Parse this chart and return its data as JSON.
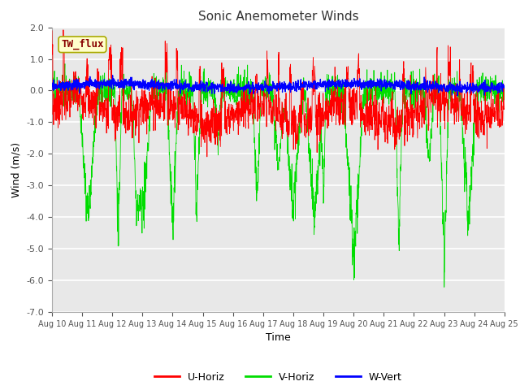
{
  "title": "Sonic Anemometer Winds",
  "xlabel": "Time",
  "ylabel": "Wind (m/s)",
  "ylim": [
    -7.0,
    2.0
  ],
  "yticks": [
    -7.0,
    -6.0,
    -5.0,
    -4.0,
    -3.0,
    -2.0,
    -1.0,
    0.0,
    1.0,
    2.0
  ],
  "xtick_labels": [
    "Aug 10",
    "Aug 11",
    "Aug 12",
    "Aug 13",
    "Aug 14",
    "Aug 15",
    "Aug 16",
    "Aug 17",
    "Aug 18",
    "Aug 19",
    "Aug 20",
    "Aug 21",
    "Aug 22",
    "Aug 23",
    "Aug 24",
    "Aug 25"
  ],
  "series_colors": {
    "U-Horiz": "#ff0000",
    "V-Horiz": "#00dd00",
    "W-Vert": "#0000ff"
  },
  "annotation_text": "TW_flux",
  "annotation_box_color": "#ffffcc",
  "annotation_box_edge": "#aaaa00",
  "annotation_text_color": "#880000",
  "plot_bg_color": "#e8e8e8",
  "grid_color": "#ffffff",
  "n_points": 2000,
  "seed": 7
}
